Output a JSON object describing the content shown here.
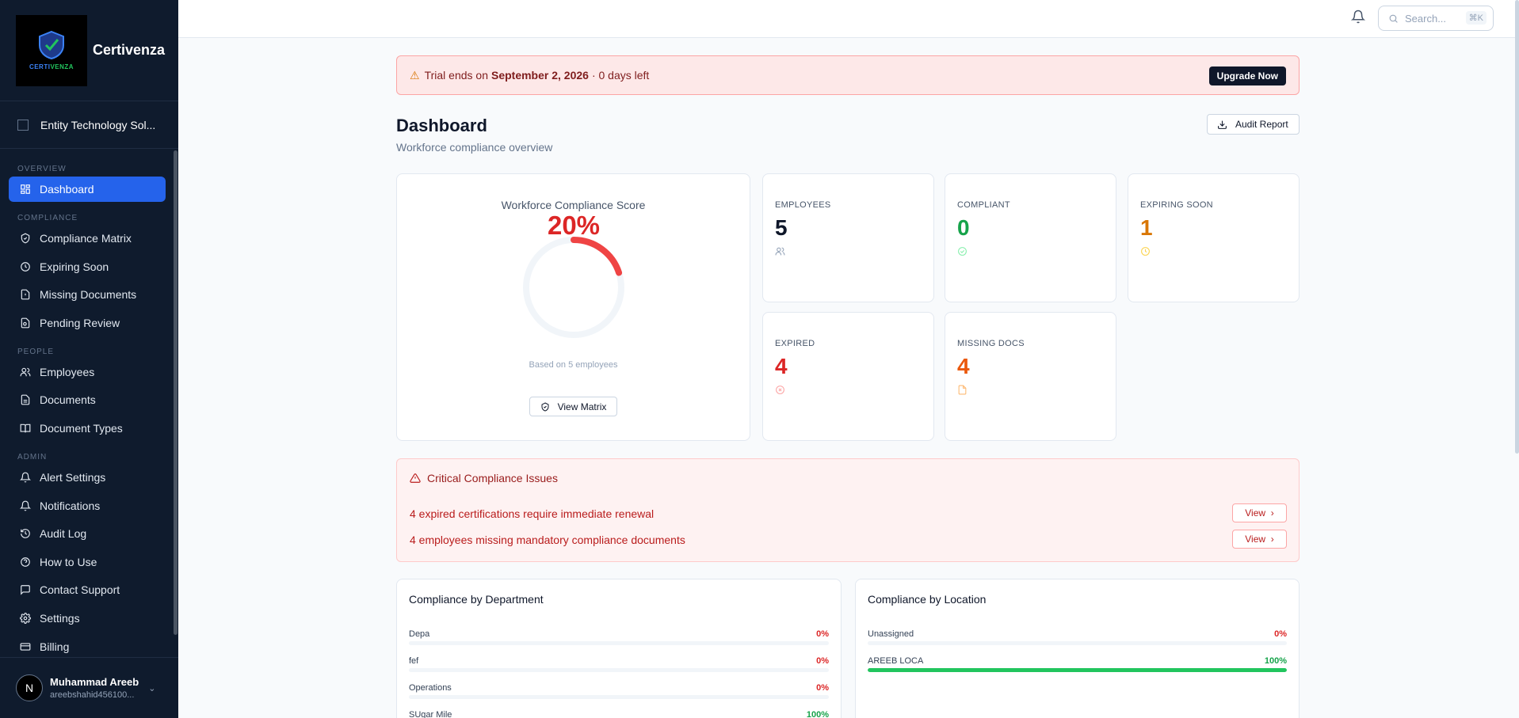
{
  "app": {
    "name": "Certivenza",
    "logo_text": "CERTIVENZA"
  },
  "org": {
    "name": "Entity Technology Sol..."
  },
  "sidebar": {
    "sections": [
      {
        "label": "OVERVIEW",
        "items": [
          {
            "label": "Dashboard",
            "icon": "dashboard-icon",
            "active": true
          }
        ]
      },
      {
        "label": "COMPLIANCE",
        "items": [
          {
            "label": "Compliance Matrix",
            "icon": "shield-icon"
          },
          {
            "label": "Expiring Soon",
            "icon": "clock-icon"
          },
          {
            "label": "Missing Documents",
            "icon": "file-alert-icon"
          },
          {
            "label": "Pending Review",
            "icon": "file-search-icon"
          }
        ]
      },
      {
        "label": "PEOPLE",
        "items": [
          {
            "label": "Employees",
            "icon": "users-icon"
          },
          {
            "label": "Documents",
            "icon": "file-text-icon"
          },
          {
            "label": "Document Types",
            "icon": "book-icon"
          }
        ]
      },
      {
        "label": "ADMIN",
        "items": [
          {
            "label": "Alert Settings",
            "icon": "bell-icon"
          },
          {
            "label": "Notifications",
            "icon": "bell-icon"
          },
          {
            "label": "Audit Log",
            "icon": "history-icon"
          },
          {
            "label": "How to Use",
            "icon": "help-circle-icon"
          },
          {
            "label": "Contact Support",
            "icon": "message-icon"
          },
          {
            "label": "Settings",
            "icon": "gear-icon"
          },
          {
            "label": "Billing",
            "icon": "credit-card-icon"
          }
        ]
      }
    ]
  },
  "user": {
    "initial": "N",
    "name": "Muhammad Areeb",
    "email": "areebshahid456100..."
  },
  "topbar": {
    "search_placeholder": "Search...",
    "shortcut": "⌘K"
  },
  "trial": {
    "prefix": "Trial ends on",
    "date": "September 2, 2026",
    "suffix": "· 0 days left",
    "button": "Upgrade Now"
  },
  "header": {
    "title": "Dashboard",
    "subtitle": "Workforce compliance overview",
    "audit_button": "Audit Report"
  },
  "score": {
    "title": "Workforce Compliance Score",
    "value": "20%",
    "fraction": 0.2,
    "note": "Based on 5 employees",
    "button": "View Matrix"
  },
  "stats": [
    {
      "label": "EMPLOYEES",
      "value": "5",
      "color": "#0f172a",
      "icon": "users-icon",
      "icon_color": "#94a3b8"
    },
    {
      "label": "COMPLIANT",
      "value": "0",
      "color": "#16a34a",
      "icon": "check-circle-icon",
      "icon_color": "#86efac"
    },
    {
      "label": "EXPIRING SOON",
      "value": "1",
      "color": "#d97706",
      "icon": "clock-icon",
      "icon_color": "#fcd34d"
    },
    {
      "label": "EXPIRED",
      "value": "4",
      "color": "#dc2626",
      "icon": "x-circle-icon",
      "icon_color": "#fca5a5"
    },
    {
      "label": "MISSING DOCS",
      "value": "4",
      "color": "#ea580c",
      "icon": "file-icon",
      "icon_color": "#fdba74"
    }
  ],
  "critical": {
    "title": "Critical Compliance Issues",
    "issues": [
      {
        "text": "4 expired certifications require immediate renewal",
        "button": "View"
      },
      {
        "text": "4 employees missing mandatory compliance documents",
        "button": "View"
      }
    ]
  },
  "department": {
    "title": "Compliance by Department",
    "rows": [
      {
        "name": "Depa",
        "pct": "0%",
        "value": 0
      },
      {
        "name": "fef",
        "pct": "0%",
        "value": 0
      },
      {
        "name": "Operations",
        "pct": "0%",
        "value": 0
      },
      {
        "name": "SUgar Mile",
        "pct": "100%",
        "value": 100
      }
    ]
  },
  "location": {
    "title": "Compliance by Location",
    "rows": [
      {
        "name": "Unassigned",
        "pct": "0%",
        "value": 0
      },
      {
        "name": "AREEB LOCA",
        "pct": "100%",
        "value": 100
      }
    ]
  },
  "colors": {
    "accent": "#2563eb",
    "danger": "#dc2626",
    "success": "#16a34a",
    "sidebar": "#0f1b2d"
  }
}
